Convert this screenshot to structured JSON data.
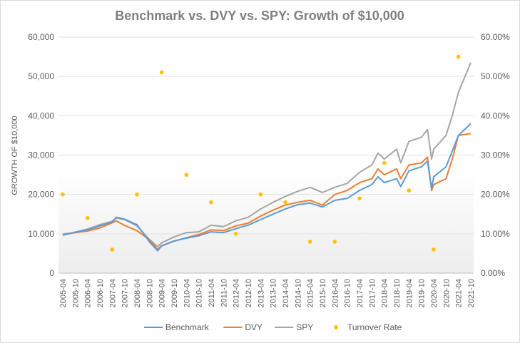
{
  "chart_data": {
    "type": "line",
    "title": "Benchmark vs. DVY vs. SPY: Growth of $10,000",
    "ylabel": "GROWTH OF $10,000",
    "ylim": [
      0,
      60000
    ],
    "y2lim": [
      0,
      0.6
    ],
    "y_ticks": [
      "0",
      "10,000",
      "20,000",
      "30,000",
      "40,000",
      "50,000",
      "60,000"
    ],
    "y2_ticks": [
      "0.00%",
      "10.00%",
      "20.00%",
      "30.00%",
      "40.00%",
      "50.00%",
      "60.00%"
    ],
    "x_ticks": [
      "2005-04",
      "2005-10",
      "2006-04",
      "2006-10",
      "2007-04",
      "2007-10",
      "2008-04",
      "2008-10",
      "2009-04",
      "2009-10",
      "2010-04",
      "2010-10",
      "2011-04",
      "2011-10",
      "2012-04",
      "2012-10",
      "2013-04",
      "2013-10",
      "2014-04",
      "2014-10",
      "2015-04",
      "2015-10",
      "2016-04",
      "2016-10",
      "2017-04",
      "2017-10",
      "2018-04",
      "2018-10",
      "2019-04",
      "2019-10",
      "2020-04",
      "2020-10",
      "2021-04",
      "2021-10"
    ],
    "legend_position": "bottom",
    "grid": true,
    "series": [
      {
        "name": "Benchmark",
        "color": "#5b9bd5",
        "kind": "line",
        "points": [
          [
            "2005-04",
            9700
          ],
          [
            "2005-10",
            10400
          ],
          [
            "2006-04",
            11000
          ],
          [
            "2006-10",
            12000
          ],
          [
            "2007-04",
            13000
          ],
          [
            "2007-06",
            14200
          ],
          [
            "2007-10",
            13700
          ],
          [
            "2008-04",
            12300
          ],
          [
            "2008-10",
            8000
          ],
          [
            "2009-02",
            5700
          ],
          [
            "2009-04",
            6900
          ],
          [
            "2009-10",
            8200
          ],
          [
            "2010-04",
            8900
          ],
          [
            "2010-10",
            9500
          ],
          [
            "2011-04",
            10500
          ],
          [
            "2011-10",
            10300
          ],
          [
            "2012-04",
            11300
          ],
          [
            "2012-10",
            12200
          ],
          [
            "2013-04",
            13600
          ],
          [
            "2013-10",
            15000
          ],
          [
            "2014-04",
            16300
          ],
          [
            "2014-10",
            17400
          ],
          [
            "2015-04",
            17800
          ],
          [
            "2015-10",
            16800
          ],
          [
            "2016-04",
            18500
          ],
          [
            "2016-10",
            19000
          ],
          [
            "2017-04",
            21000
          ],
          [
            "2017-10",
            22500
          ],
          [
            "2018-01",
            24500
          ],
          [
            "2018-04",
            23000
          ],
          [
            "2018-10",
            24000
          ],
          [
            "2018-12",
            22000
          ],
          [
            "2019-04",
            26000
          ],
          [
            "2019-10",
            27000
          ],
          [
            "2020-01",
            28500
          ],
          [
            "2020-03",
            21500
          ],
          [
            "2020-04",
            24500
          ],
          [
            "2020-10",
            27000
          ],
          [
            "2021-01",
            31000
          ],
          [
            "2021-04",
            35000
          ],
          [
            "2021-10",
            38000
          ]
        ]
      },
      {
        "name": "DVY",
        "color": "#ed7d31",
        "kind": "line",
        "points": [
          [
            "2005-04",
            9900
          ],
          [
            "2005-10",
            10300
          ],
          [
            "2006-04",
            10700
          ],
          [
            "2006-10",
            11500
          ],
          [
            "2007-04",
            12800
          ],
          [
            "2007-06",
            13300
          ],
          [
            "2007-10",
            12100
          ],
          [
            "2008-04",
            10800
          ],
          [
            "2008-10",
            8500
          ],
          [
            "2009-02",
            6000
          ],
          [
            "2009-04",
            7000
          ],
          [
            "2009-10",
            8100
          ],
          [
            "2010-04",
            9000
          ],
          [
            "2010-10",
            9800
          ],
          [
            "2011-04",
            11000
          ],
          [
            "2011-10",
            10800
          ],
          [
            "2012-04",
            12000
          ],
          [
            "2012-10",
            12700
          ],
          [
            "2013-04",
            14500
          ],
          [
            "2013-10",
            16000
          ],
          [
            "2014-04",
            17300
          ],
          [
            "2014-10",
            18000
          ],
          [
            "2015-04",
            18500
          ],
          [
            "2015-10",
            17300
          ],
          [
            "2016-04",
            20000
          ],
          [
            "2016-10",
            21000
          ],
          [
            "2017-04",
            23000
          ],
          [
            "2017-10",
            24000
          ],
          [
            "2018-01",
            26500
          ],
          [
            "2018-04",
            25000
          ],
          [
            "2018-10",
            26500
          ],
          [
            "2018-12",
            24000
          ],
          [
            "2019-04",
            27500
          ],
          [
            "2019-10",
            28000
          ],
          [
            "2020-01",
            29500
          ],
          [
            "2020-03",
            21000
          ],
          [
            "2020-04",
            22500
          ],
          [
            "2020-10",
            24000
          ],
          [
            "2021-01",
            29000
          ],
          [
            "2021-04",
            35000
          ],
          [
            "2021-10",
            35500
          ]
        ]
      },
      {
        "name": "SPY",
        "color": "#a5a5a5",
        "kind": "line",
        "points": [
          [
            "2005-04",
            9600
          ],
          [
            "2005-10",
            10400
          ],
          [
            "2006-04",
            11200
          ],
          [
            "2006-10",
            12300
          ],
          [
            "2007-04",
            13200
          ],
          [
            "2007-06",
            14000
          ],
          [
            "2007-10",
            13600
          ],
          [
            "2008-04",
            12000
          ],
          [
            "2008-10",
            8600
          ],
          [
            "2009-02",
            6700
          ],
          [
            "2009-04",
            7700
          ],
          [
            "2009-10",
            9200
          ],
          [
            "2010-04",
            10300
          ],
          [
            "2010-10",
            10500
          ],
          [
            "2011-04",
            12200
          ],
          [
            "2011-10",
            11800
          ],
          [
            "2012-04",
            13300
          ],
          [
            "2012-10",
            14200
          ],
          [
            "2013-04",
            16300
          ],
          [
            "2013-10",
            18000
          ],
          [
            "2014-04",
            19500
          ],
          [
            "2014-10",
            20800
          ],
          [
            "2015-04",
            21800
          ],
          [
            "2015-10",
            20500
          ],
          [
            "2016-04",
            21800
          ],
          [
            "2016-10",
            22800
          ],
          [
            "2017-04",
            25600
          ],
          [
            "2017-10",
            27500
          ],
          [
            "2018-01",
            30500
          ],
          [
            "2018-04",
            29000
          ],
          [
            "2018-10",
            31500
          ],
          [
            "2018-12",
            28000
          ],
          [
            "2019-04",
            33500
          ],
          [
            "2019-10",
            34500
          ],
          [
            "2020-01",
            36500
          ],
          [
            "2020-03",
            29000
          ],
          [
            "2020-04",
            31500
          ],
          [
            "2020-10",
            35000
          ],
          [
            "2021-01",
            40000
          ],
          [
            "2021-04",
            46000
          ],
          [
            "2021-10",
            53500
          ]
        ]
      },
      {
        "name": "Turnover Rate",
        "color": "#ffc000",
        "kind": "scatter",
        "axis": "right",
        "points": [
          [
            "2005-04",
            0.2
          ],
          [
            "2006-04",
            0.14
          ],
          [
            "2007-04",
            0.06
          ],
          [
            "2008-04",
            0.2
          ],
          [
            "2009-04",
            0.51
          ],
          [
            "2010-04",
            0.25
          ],
          [
            "2011-04",
            0.18
          ],
          [
            "2012-04",
            0.1
          ],
          [
            "2013-04",
            0.2
          ],
          [
            "2014-04",
            0.18
          ],
          [
            "2015-04",
            0.08
          ],
          [
            "2016-04",
            0.08
          ],
          [
            "2017-04",
            0.19
          ],
          [
            "2018-04",
            0.28
          ],
          [
            "2019-04",
            0.21
          ],
          [
            "2020-04",
            0.06
          ],
          [
            "2021-04",
            0.55
          ]
        ]
      }
    ]
  }
}
